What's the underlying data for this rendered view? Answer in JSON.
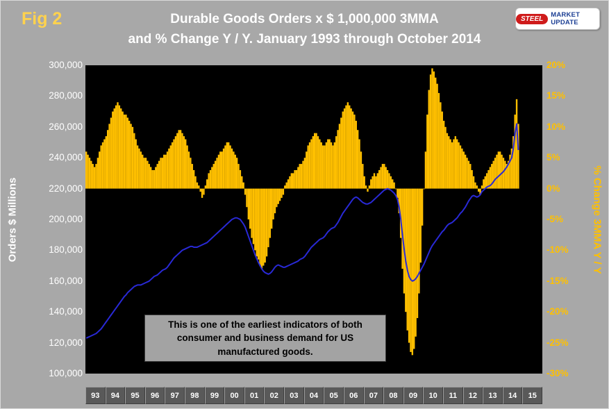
{
  "fig_label": "Fig 2",
  "header": {
    "title_line1": "Durable Goods Orders x $ 1,000,000 3MMA",
    "title_line2": "and % Change Y / Y. January 1993 through October 2014"
  },
  "logo": {
    "steel": "STEEL",
    "market_update": "MARKET UPDATE"
  },
  "annotation": {
    "line1": "This is one of the earliest indicators of both",
    "line2": "consumer and business demand for US",
    "line3": "manufactured goods."
  },
  "colors": {
    "background": "#a8a8a8",
    "plot_bg": "#000000",
    "bar": "#ffc000",
    "line": "#2929d6",
    "gold_text": "#ffc000",
    "title_text": "#ffffff",
    "fig_label": "#ffd24d"
  },
  "chart_data": {
    "type": "bar+line combo",
    "title": "Durable Goods Orders x $ 1,000,000 3MMA and % Change Y / Y. January 1993 through October 2014",
    "x_period": "monthly, January 1993 through October 2014",
    "x_years": [
      "93",
      "94",
      "95",
      "96",
      "97",
      "98",
      "99",
      "00",
      "01",
      "02",
      "03",
      "04",
      "05",
      "06",
      "07",
      "08",
      "09",
      "10",
      "11",
      "12",
      "13",
      "14",
      "15"
    ],
    "left_axis": {
      "label": "Orders $ Millions",
      "min": 100000,
      "max": 300000,
      "step": 20000,
      "ticks": [
        "300,000",
        "280,000",
        "260,000",
        "240,000",
        "220,000",
        "200,000",
        "180,000",
        "160,000",
        "140,000",
        "120,000",
        "100,000"
      ]
    },
    "right_axis": {
      "label": "% Change 3MMA Y / Y",
      "min": -30,
      "max": 20,
      "step": 5,
      "ticks": [
        "20%",
        "15%",
        "10%",
        "5%",
        "0%",
        "-5%",
        "-10%",
        "-15%",
        "-20%",
        "-25%",
        "-30%"
      ]
    },
    "grid": false,
    "legend": false,
    "series": [
      {
        "name": "Durable Goods Orders $1,000,000 3MMA",
        "type": "line",
        "axis": "left",
        "color": "#2929d6",
        "values": [
          123000,
          123500,
          124000,
          124500,
          125000,
          125500,
          126000,
          127000,
          128000,
          129000,
          130500,
          132000,
          133500,
          135000,
          136500,
          138000,
          139500,
          141000,
          142500,
          144000,
          145500,
          147000,
          148500,
          150000,
          151000,
          152500,
          153500,
          154500,
          155500,
          156500,
          157000,
          157500,
          157500,
          157500,
          158000,
          158500,
          159000,
          159500,
          160000,
          161000,
          162000,
          163000,
          163500,
          164000,
          165000,
          166000,
          167000,
          167500,
          168000,
          169000,
          170500,
          172000,
          173500,
          175000,
          176000,
          177000,
          178000,
          179000,
          180000,
          180500,
          181000,
          181500,
          182000,
          182500,
          182500,
          182000,
          182000,
          182000,
          182500,
          183000,
          183500,
          184000,
          184500,
          185000,
          186000,
          187000,
          188000,
          189000,
          190000,
          191000,
          192000,
          193000,
          194000,
          195000,
          196000,
          197000,
          198000,
          199000,
          200000,
          200500,
          201000,
          201000,
          200500,
          200000,
          198500,
          197000,
          195000,
          192000,
          189000,
          186000,
          183000,
          180000,
          177000,
          174500,
          172000,
          170000,
          168000,
          166500,
          165500,
          165000,
          164500,
          165000,
          166000,
          167500,
          169000,
          170000,
          170500,
          170000,
          169500,
          169000,
          169000,
          169500,
          170000,
          170500,
          171000,
          171500,
          172000,
          172500,
          173000,
          174000,
          174500,
          175000,
          176000,
          177500,
          179000,
          180500,
          182000,
          183000,
          184000,
          185000,
          186000,
          187000,
          187500,
          188000,
          189000,
          190500,
          192000,
          193000,
          194000,
          194500,
          195000,
          196500,
          198000,
          200000,
          202000,
          204000,
          205500,
          207000,
          208500,
          210000,
          211500,
          213000,
          214000,
          214500,
          214000,
          213000,
          212000,
          211000,
          210500,
          210000,
          210000,
          210500,
          211000,
          212000,
          213000,
          214000,
          215000,
          216000,
          217000,
          218000,
          219000,
          219500,
          220000,
          219500,
          219000,
          218000,
          217000,
          215500,
          213000,
          208000,
          200000,
          190000,
          181000,
          173000,
          167000,
          163000,
          161000,
          160000,
          160500,
          161500,
          163000,
          165000,
          167000,
          169000,
          171000,
          173500,
          176000,
          178500,
          181000,
          183000,
          184500,
          186000,
          187500,
          189000,
          190500,
          192000,
          193000,
          194500,
          196000,
          197000,
          197500,
          198000,
          199000,
          200000,
          201000,
          202500,
          204000,
          205000,
          206500,
          208000,
          210000,
          212000,
          213500,
          215000,
          215500,
          215000,
          214500,
          215000,
          216000,
          218000,
          219000,
          220000,
          221000,
          221500,
          222000,
          223000,
          224500,
          226000,
          227000,
          228000,
          229000,
          230000,
          231000,
          232500,
          234000,
          236000,
          238000,
          240000,
          246000,
          256000,
          262000,
          245000
        ]
      },
      {
        "name": "% Change 3MMA Y / Y",
        "type": "bar",
        "axis": "right",
        "color": "#ffc000",
        "values": [
          6,
          5.5,
          5,
          4.5,
          4,
          3.5,
          4,
          5,
          6,
          7,
          7.5,
          8,
          8.5,
          9.5,
          10.5,
          11.5,
          12.5,
          13,
          13.5,
          14,
          13.5,
          13,
          12.5,
          12,
          12,
          11.5,
          11,
          10.5,
          10,
          9,
          8,
          7,
          6.5,
          6,
          5.5,
          5,
          5,
          4.5,
          4,
          3.5,
          3,
          3,
          3.5,
          4,
          4.5,
          5,
          5,
          5.5,
          5.5,
          6,
          6.5,
          7,
          7.5,
          8,
          8.5,
          9,
          9.5,
          9.5,
          9,
          8.5,
          8,
          7,
          6,
          5,
          4,
          3,
          2,
          1,
          0.5,
          -0.5,
          -1.5,
          -1,
          0.5,
          1.5,
          2.5,
          3,
          3.5,
          4,
          4.5,
          5,
          5.5,
          6,
          6,
          6.5,
          7,
          7.5,
          7.5,
          7,
          6.5,
          6,
          5.5,
          5,
          4,
          3,
          2,
          1,
          -1,
          -3,
          -5,
          -6.5,
          -8,
          -9,
          -10,
          -11,
          -11.5,
          -12.5,
          -13,
          -12.5,
          -12,
          -11,
          -9.5,
          -8,
          -6.5,
          -5,
          -4,
          -3,
          -2.5,
          -2,
          -1.5,
          -1,
          0.5,
          1,
          1.5,
          2,
          2.5,
          2.5,
          3,
          3,
          3.5,
          4,
          4,
          4.5,
          5,
          6,
          7,
          7.5,
          8,
          8.5,
          9,
          9,
          8.5,
          8,
          7.5,
          7,
          7,
          7.5,
          8,
          8,
          7.5,
          7,
          7.5,
          8.5,
          9.5,
          10.5,
          11.5,
          12.5,
          13,
          13.5,
          14,
          13.5,
          13,
          12.5,
          12,
          11,
          9.5,
          8,
          6,
          4,
          2,
          0.5,
          -0.5,
          0.5,
          1.5,
          2,
          2.5,
          2,
          2.5,
          3,
          3.5,
          4,
          4,
          3.5,
          3,
          2.5,
          2,
          1.5,
          1,
          0,
          -1.5,
          -4,
          -8,
          -13,
          -17,
          -20,
          -23,
          -25,
          -26.5,
          -27,
          -26,
          -24,
          -21,
          -17,
          -12,
          -6,
          0,
          6,
          12,
          16,
          18.5,
          19.5,
          19,
          18,
          17,
          15.5,
          14,
          12.5,
          11,
          10,
          9,
          8.5,
          8,
          7.5,
          8,
          8.5,
          8,
          7.5,
          7,
          6.5,
          6,
          5.5,
          5,
          4.5,
          4,
          3,
          2,
          1,
          0.5,
          -0.5,
          -1,
          0.5,
          1.5,
          2,
          2.5,
          3,
          3.5,
          4,
          4.5,
          5,
          5.5,
          6,
          6,
          5.5,
          5,
          4.5,
          4,
          4.5,
          5.5,
          6.5,
          8.5,
          12,
          14.5,
          10.5
        ]
      }
    ]
  }
}
